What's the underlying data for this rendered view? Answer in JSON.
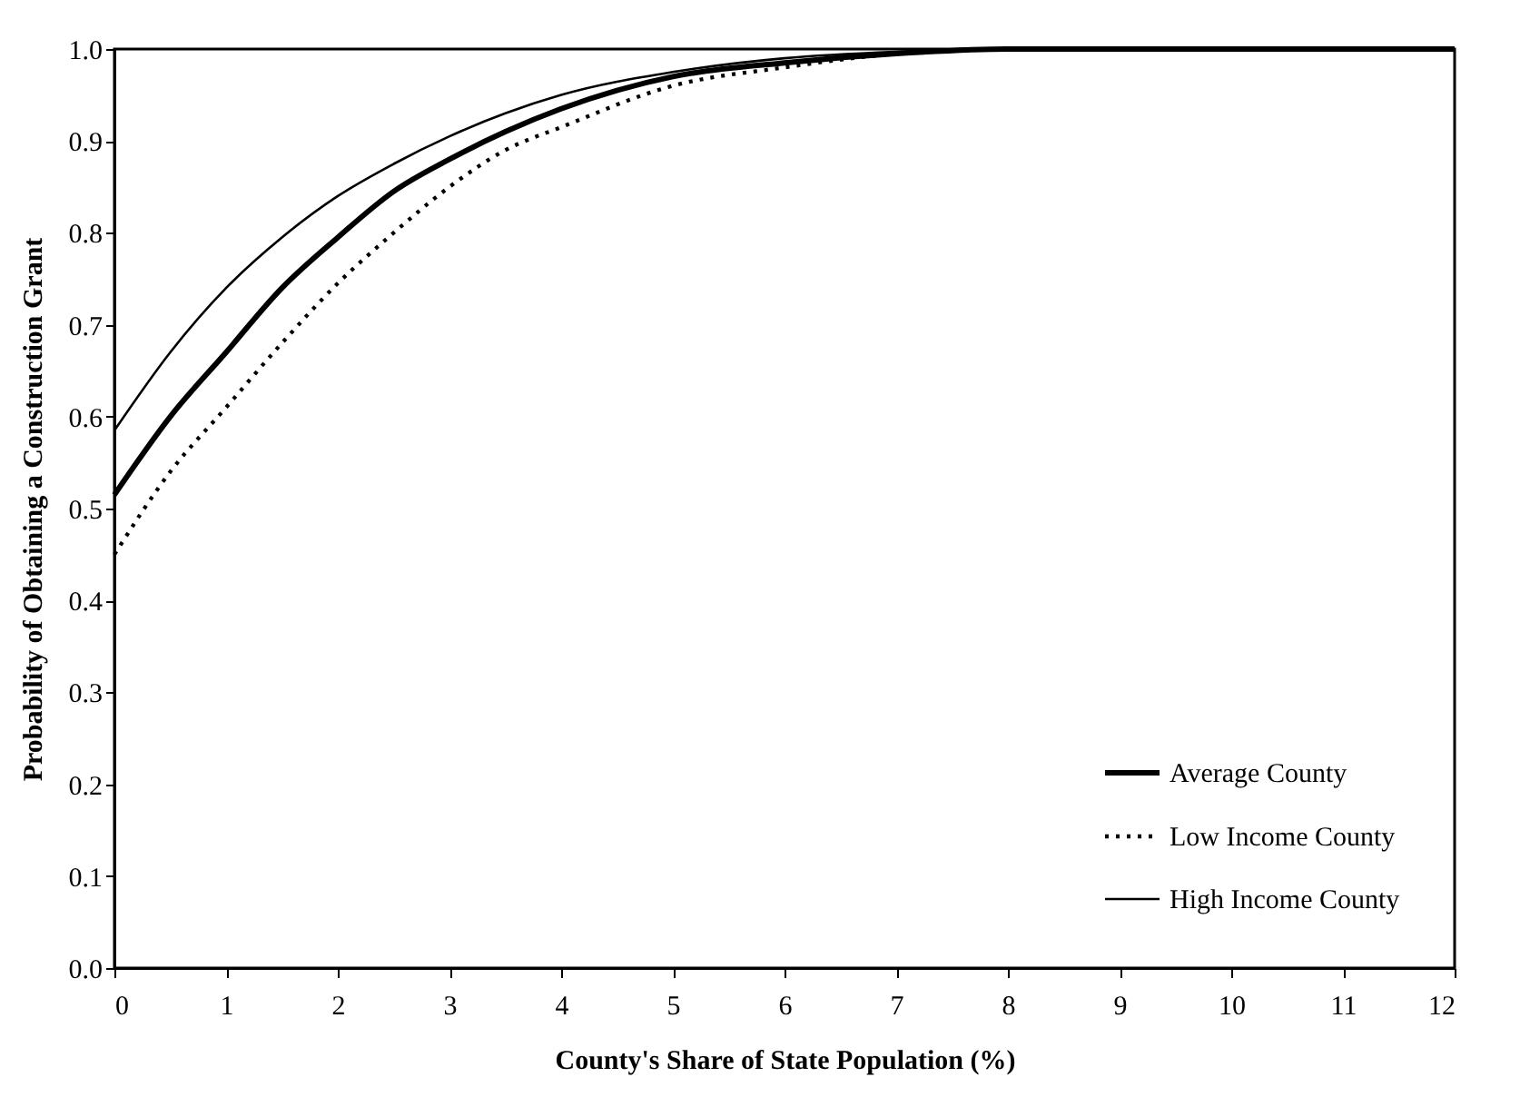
{
  "chart_data": {
    "type": "line",
    "xlabel": "County's Share of State Population (%)",
    "ylabel": "Probability of Obtaining a Construction Grant",
    "x": [
      0,
      0.5,
      1,
      1.5,
      2,
      2.5,
      3,
      3.5,
      4,
      5,
      6,
      7,
      8,
      12
    ],
    "series": [
      {
        "name": "Average County",
        "color": "#000000",
        "line_style": "solid",
        "values": [
          0.515,
          0.6,
          0.67,
          0.74,
          0.795,
          0.845,
          0.88,
          0.91,
          0.935,
          0.97,
          0.985,
          0.995,
          1.0,
          1.0
        ]
      },
      {
        "name": "Low Income County",
        "color": "#000000",
        "line_style": "dotted",
        "values": [
          0.45,
          0.54,
          0.61,
          0.68,
          0.745,
          0.8,
          0.85,
          0.89,
          0.915,
          0.96,
          0.98,
          0.995,
          1.0,
          1.0
        ]
      },
      {
        "name": "High Income County",
        "color": "#000000",
        "line_style": "solid",
        "values": [
          0.585,
          0.67,
          0.74,
          0.795,
          0.84,
          0.875,
          0.905,
          0.93,
          0.95,
          0.975,
          0.99,
          0.997,
          1.0,
          1.0
        ]
      }
    ],
    "xlim": [
      0,
      12
    ],
    "xticks": [
      0,
      1,
      2,
      3,
      4,
      5,
      6,
      7,
      8,
      9,
      10,
      11,
      12
    ],
    "ylim": [
      0,
      1
    ],
    "yticks": [
      {
        "value": 0,
        "label": "0.0"
      },
      0.1,
      0.2,
      0.3,
      0.4,
      0.5,
      0.6,
      0.7,
      0.8,
      0.9,
      {
        "value": 1,
        "label": "1.0"
      }
    ],
    "grid": false,
    "legend": "bottom right",
    "marker": "none"
  }
}
